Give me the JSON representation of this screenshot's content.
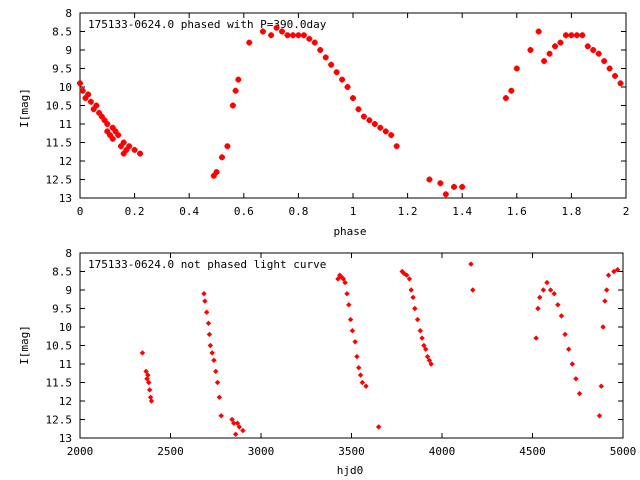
{
  "chart_data": [
    {
      "type": "scatter",
      "title": "175133-0624.0 phased with P=390.0day",
      "xlabel": "phase",
      "ylabel": "I[mag]",
      "xlim": [
        0,
        2
      ],
      "ylim": [
        8,
        13
      ],
      "y_inverted": true,
      "color": "#ff0000",
      "grid": false,
      "x_ticks": [
        "0",
        "0.2",
        "0.4",
        "0.6",
        "0.8",
        "1",
        "1.2",
        "1.4",
        "1.6",
        "1.8",
        "2"
      ],
      "y_ticks": [
        "8",
        "8.5",
        "9",
        "9.5",
        "10",
        "10.5",
        "11",
        "11.5",
        "12",
        "12.5",
        "13"
      ],
      "series": [
        {
          "x": [
            0.0,
            0.01,
            0.02,
            0.03,
            0.04,
            0.05,
            0.06,
            0.07,
            0.08,
            0.09,
            0.1,
            0.1,
            0.11,
            0.12,
            0.12,
            0.13,
            0.14,
            0.15,
            0.16,
            0.16,
            0.17,
            0.18,
            0.2,
            0.22,
            0.49,
            0.5,
            0.52,
            0.54,
            0.56,
            0.57,
            0.58,
            0.62,
            0.67,
            0.7,
            0.72,
            0.74,
            0.76,
            0.78,
            0.8,
            0.82,
            0.84,
            0.86,
            0.88,
            0.9,
            0.92,
            0.94,
            0.96,
            0.98,
            1.0,
            1.02,
            1.04,
            1.06,
            1.08,
            1.1,
            1.12,
            1.14,
            1.16,
            1.28,
            1.32,
            1.34,
            1.37,
            1.4,
            1.56,
            1.58,
            1.6,
            1.65,
            1.68,
            1.7,
            1.72,
            1.74,
            1.76,
            1.78,
            1.8,
            1.82,
            1.84,
            1.86,
            1.88,
            1.9,
            1.92,
            1.94,
            1.96,
            1.98
          ],
          "y": [
            9.9,
            10.1,
            10.3,
            10.2,
            10.4,
            10.6,
            10.5,
            10.7,
            10.8,
            10.9,
            11.0,
            11.2,
            11.3,
            11.1,
            11.4,
            11.2,
            11.3,
            11.6,
            11.8,
            11.5,
            11.7,
            11.6,
            11.7,
            11.8,
            12.4,
            12.3,
            11.9,
            11.6,
            10.5,
            10.1,
            9.8,
            8.8,
            8.5,
            8.6,
            8.4,
            8.5,
            8.6,
            8.6,
            8.6,
            8.6,
            8.7,
            8.8,
            9.0,
            9.2,
            9.4,
            9.6,
            9.8,
            10.0,
            10.3,
            10.6,
            10.8,
            10.9,
            11.0,
            11.1,
            11.2,
            11.3,
            11.6,
            12.5,
            12.6,
            12.9,
            12.7,
            12.7,
            10.3,
            10.1,
            9.5,
            9.0,
            8.5,
            9.3,
            9.1,
            8.9,
            8.8,
            8.6,
            8.6,
            8.6,
            8.6,
            8.9,
            9.0,
            9.1,
            9.3,
            9.5,
            9.7,
            9.9
          ]
        }
      ]
    },
    {
      "type": "scatter",
      "title": "175133-0624.0 not phased light curve",
      "xlabel": "hjd0",
      "ylabel": "I[mag]",
      "xlim": [
        2000,
        5000
      ],
      "ylim": [
        8,
        13
      ],
      "y_inverted": true,
      "color": "#ff0000",
      "grid": false,
      "x_ticks": [
        "2000",
        "2500",
        "3000",
        "3500",
        "4000",
        "4500",
        "5000"
      ],
      "y_ticks": [
        "8",
        "8.5",
        "9",
        "9.5",
        "10",
        "10.5",
        "11",
        "11.5",
        "12",
        "12.5",
        "13"
      ],
      "series": [
        {
          "x": [
            2345,
            2365,
            2370,
            2375,
            2380,
            2385,
            2390,
            2395,
            2685,
            2690,
            2700,
            2710,
            2715,
            2720,
            2730,
            2740,
            2750,
            2760,
            2770,
            2780,
            2840,
            2850,
            2860,
            2870,
            2880,
            2900,
            3425,
            3435,
            3445,
            3455,
            3465,
            3475,
            3485,
            3495,
            3505,
            3520,
            3530,
            3540,
            3550,
            3560,
            3580,
            3650,
            3780,
            3790,
            3805,
            3820,
            3830,
            3840,
            3850,
            3865,
            3880,
            3890,
            3900,
            3910,
            3920,
            3930,
            3940,
            4160,
            4170,
            4520,
            4530,
            4540,
            4560,
            4580,
            4600,
            4620,
            4640,
            4660,
            4680,
            4700,
            4720,
            4740,
            4760,
            4870,
            4880,
            4890,
            4900,
            4910,
            4920,
            4950,
            4970
          ],
          "y": [
            10.7,
            11.2,
            11.4,
            11.3,
            11.5,
            11.7,
            11.9,
            12.0,
            9.1,
            9.3,
            9.6,
            9.9,
            10.2,
            10.5,
            10.7,
            10.9,
            11.2,
            11.5,
            11.9,
            12.4,
            12.5,
            12.6,
            12.9,
            12.6,
            12.7,
            12.8,
            8.7,
            8.6,
            8.65,
            8.7,
            8.8,
            9.1,
            9.4,
            9.8,
            10.1,
            10.4,
            10.8,
            11.1,
            11.3,
            11.5,
            11.6,
            12.7,
            8.5,
            8.55,
            8.6,
            8.7,
            9.0,
            9.2,
            9.5,
            9.8,
            10.1,
            10.3,
            10.5,
            10.6,
            10.8,
            10.9,
            11.0,
            8.3,
            9.0,
            10.3,
            9.5,
            9.2,
            9.0,
            8.8,
            9.0,
            9.1,
            9.4,
            9.7,
            10.2,
            10.6,
            11.0,
            11.4,
            11.8,
            12.4,
            11.6,
            10.0,
            9.3,
            9.0,
            8.6,
            8.5,
            8.45
          ]
        }
      ]
    }
  ]
}
